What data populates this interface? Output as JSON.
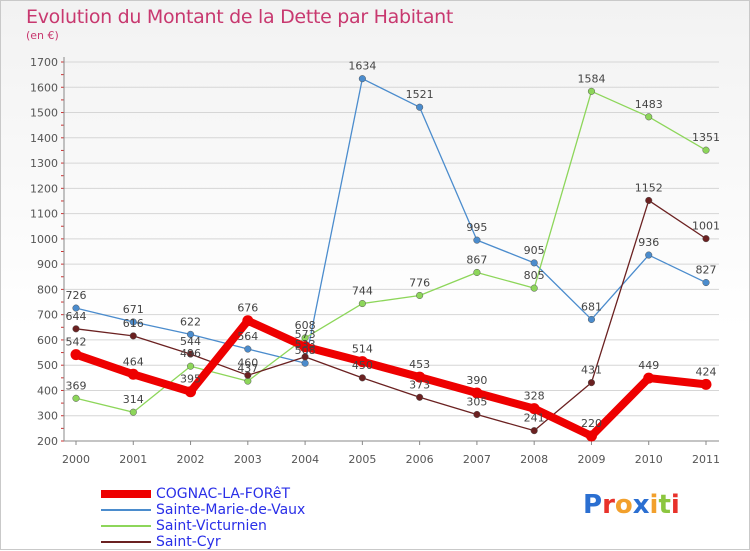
{
  "chart_data": {
    "type": "line",
    "title": "Evolution du Montant de la Dette par Habitant",
    "subtitle": "(en €)",
    "xlabel": "",
    "ylabel": "",
    "x": [
      "2000",
      "2001",
      "2002",
      "2003",
      "2004",
      "2005",
      "2006",
      "2007",
      "2008",
      "2009",
      "2010",
      "2011"
    ],
    "ylim": [
      200,
      1700
    ],
    "yticks": [
      200,
      300,
      400,
      500,
      600,
      700,
      800,
      900,
      1000,
      1100,
      1200,
      1300,
      1400,
      1500,
      1600,
      1700
    ],
    "grid": "horizontal",
    "legend_position": "bottom-left",
    "series": [
      {
        "name": "COGNAC-LA-FORêT",
        "color": "#ee0000",
        "width": "thick",
        "values": [
          542,
          464,
          395,
          676,
          573,
          514,
          453,
          390,
          328,
          220,
          449,
          424
        ],
        "labels": [
          "542",
          "464",
          "395",
          "676",
          "573",
          "514",
          "453",
          "390",
          "328",
          "220",
          "449",
          "424"
        ]
      },
      {
        "name": "Sainte-Marie-de-Vaux",
        "color": "#4b8ccd",
        "width": "thin",
        "values": [
          726,
          671,
          622,
          564,
          508,
          1634,
          1521,
          995,
          905,
          681,
          936,
          827
        ],
        "labels": [
          "726",
          "671",
          "622",
          "564",
          "508",
          "1634",
          "1521",
          "995",
          "905",
          "681",
          "936",
          "827"
        ]
      },
      {
        "name": "Saint-Victurnien",
        "color": "#8dd65a",
        "width": "thin",
        "values": [
          369,
          314,
          496,
          437,
          608,
          744,
          776,
          867,
          805,
          1584,
          1483,
          1351
        ],
        "labels": [
          "369",
          "314",
          "496",
          "437",
          "608",
          "744",
          "776",
          "867",
          "805",
          "1584",
          "1483",
          "1351"
        ]
      },
      {
        "name": "Saint-Cyr",
        "color": "#6b2121",
        "width": "thin",
        "values": [
          644,
          616,
          544,
          460,
          533,
          450,
          373,
          305,
          241,
          431,
          1152,
          1001
        ],
        "labels": [
          "644",
          "616",
          "544",
          "460",
          "533",
          "450",
          "373",
          "305",
          "241",
          "431",
          "1152",
          "1001"
        ]
      }
    ]
  },
  "logo": {
    "text": "Proxiti",
    "letters": [
      "P",
      "r",
      "o",
      "x",
      "i",
      "t",
      "i"
    ],
    "colors": [
      "#2b6fd1",
      "#e8322b",
      "#f2a02c",
      "#2b6fd1",
      "#f2a02c",
      "#8cc63f",
      "#e8322b"
    ]
  }
}
